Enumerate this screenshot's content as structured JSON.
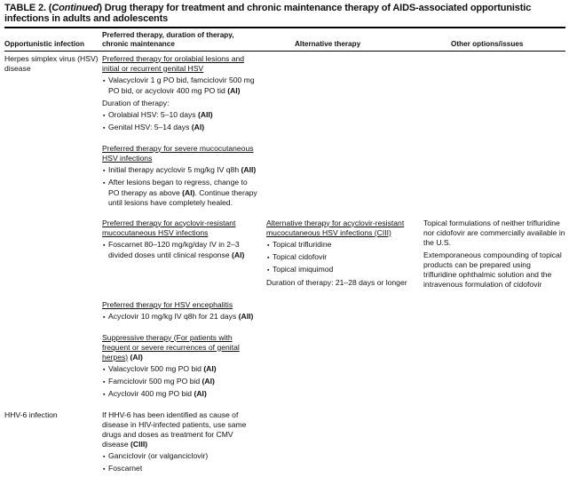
{
  "title": {
    "prefix": "TABLE 2. (",
    "cont": "Continued",
    "rest": ") Drug therapy for treatment and chronic maintenance therapy of AIDS-associated opportunistic infections in adults and adolescents"
  },
  "headers": {
    "col1": "Opportunistic infection",
    "col2a": "Preferred therapy, duration of therapy,",
    "col2b": "chronic maintenance",
    "col3": "Alternative therapy",
    "col4": "Other options/issues"
  },
  "rows": [
    {
      "infection": "Herpes simplex virus (HSV) disease",
      "b1": {
        "heading": "Preferred therapy for orolabial lesions and initial or recurrent genital HSV",
        "i1": "Valacyclovir 1 g PO bid, famciclovir 500 mg PO bid, or acyclovir 400 mg PO tid ",
        "i1r": "(AI)",
        "dur": "Duration of therapy:",
        "i2": "Orolabial HSV: 5–10 days ",
        "i2r": "(AII)",
        "i3": "Genital HSV: 5–14 days ",
        "i3r": "(AI)"
      },
      "b2": {
        "heading": "Preferred therapy for severe mucocutaneous HSV infections",
        "i1": "Initial therapy acyclovir 5 mg/kg IV q8h ",
        "i1r": "(AII)",
        "i2a": "After lesions began to regress, change to PO therapy as above ",
        "i2r": "(AI)",
        "i2b": ". Continue therapy until lesions have completely healed."
      },
      "b3": {
        "heading": "Preferred therapy for acyclovir-resistant mucocutaneous HSV infections",
        "i1": "Foscarnet 80–120 mg/kg/day IV in 2–3 divided doses until clinical response ",
        "i1r": "(AI)"
      },
      "alt": {
        "heading": "Alternative therapy for acyclovir-resistant mucocutaneous HSV infections (CIII)",
        "i1": "Topical trifluridine",
        "i2": "Topical cidofovir",
        "i3": "Topical imiquimod",
        "dur": "Duration of therapy: 21–28 days or longer"
      },
      "other": {
        "p1": "Topical formulations of neither trifluridine nor cidofovir are commercially available in the U.S.",
        "p2": "Extemporaneous compounding of topical products can be prepared using trifluridine ophthalmic solution and the intravenous formulation of cidofovir"
      },
      "b4": {
        "heading": "Preferred therapy for HSV encephalitis",
        "i1": "Acyclovir 10 mg/kg IV q8h for 21 days ",
        "i1r": "(AII)"
      },
      "b5": {
        "heading": "Suppressive therapy (For patients with frequent or severe recurrences of genital herpes)",
        "hr": " (AI)",
        "i1": "Valacyclovir 500 mg PO bid ",
        "i1r": "(AI)",
        "i2": "Famciclovir 500 mg PO bid ",
        "i2r": "(AI)",
        "i3": "Acyclovir 400 mg PO bid ",
        "i3r": "(AI)"
      }
    },
    {
      "infection": "HHV-6 infection",
      "text": "If HHV-6 has been identified as cause of disease in HIV-infected patients, use same drugs and doses as treatment for CMV disease ",
      "tr": "(CIII)",
      "i1": "Ganciclovir (or valganciclovir)",
      "i2": "Foscarnet"
    }
  ]
}
